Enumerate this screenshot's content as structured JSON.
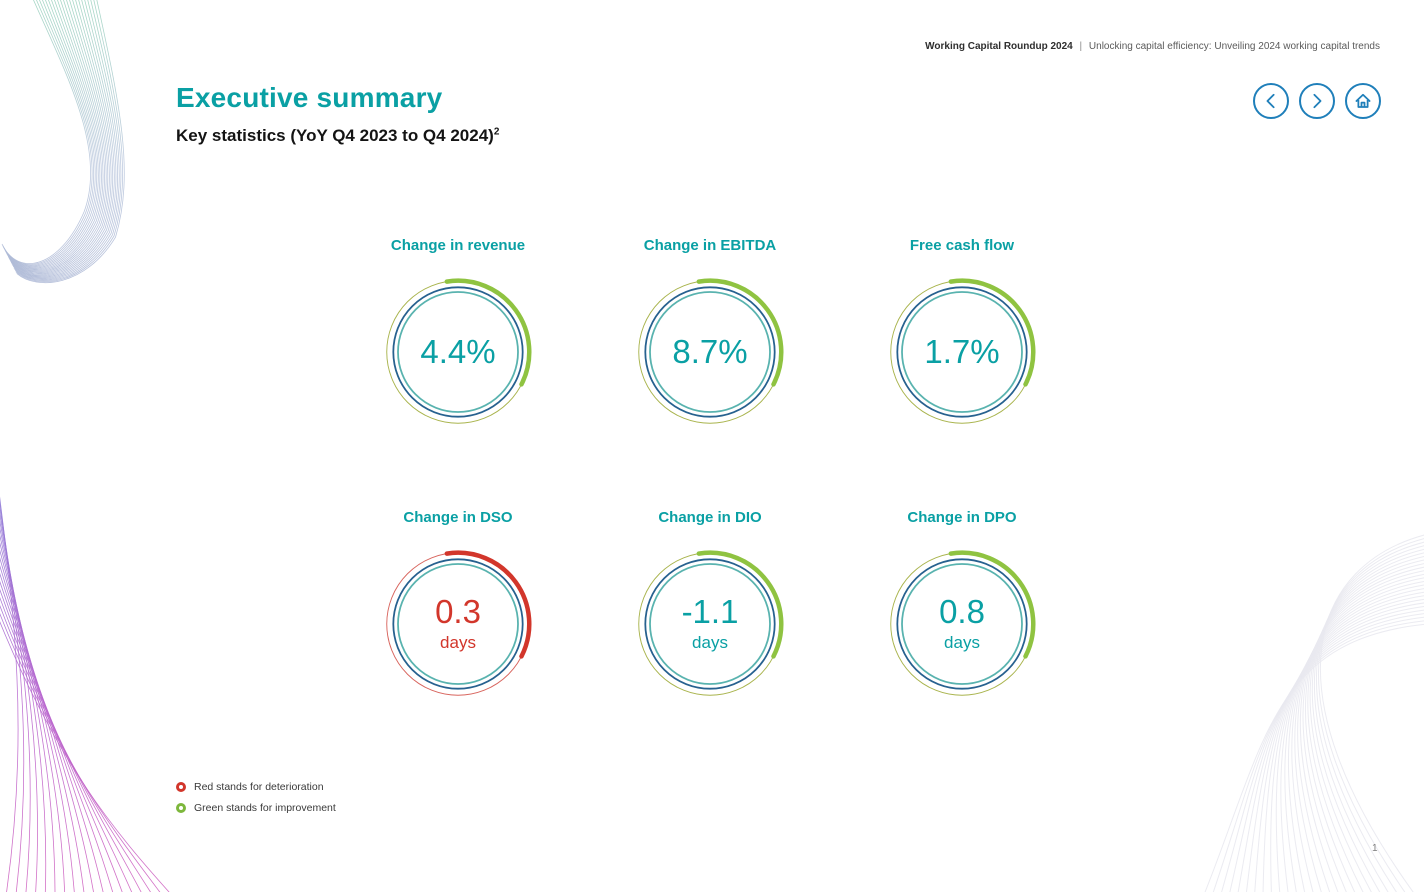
{
  "header": {
    "brand": "Working Capital Roundup 2024",
    "separator": "|",
    "tagline": "Unlocking capital efficiency: Unveiling 2024 working capital trends"
  },
  "page": {
    "title": "Executive summary",
    "subtitle": "Key statistics (YoY Q4 2023 to Q4 2024)",
    "subtitle_sup": "2",
    "page_number": "1"
  },
  "nav": {
    "prev_icon": "chevron-left",
    "next_icon": "chevron-right",
    "home_icon": "home"
  },
  "stats": [
    {
      "label": "Change in revenue",
      "value": "4.4%",
      "unit": "",
      "status": "improvement"
    },
    {
      "label": "Change in EBITDA",
      "value": "8.7%",
      "unit": "",
      "status": "improvement"
    },
    {
      "label": "Free cash flow",
      "value": "1.7%",
      "unit": "",
      "status": "improvement"
    },
    {
      "label": "Change in DSO",
      "value": "0.3",
      "unit": "days",
      "status": "deterioration"
    },
    {
      "label": "Change in DIO",
      "value": "-1.1",
      "unit": "days",
      "status": "improvement"
    },
    {
      "label": "Change in DPO",
      "value": "0.8",
      "unit": "days",
      "status": "improvement"
    }
  ],
  "legend": {
    "items": [
      {
        "label": "Red stands for deterioration",
        "color": "#d2362b",
        "meaning": "deterioration"
      },
      {
        "label": "Green stands for improvement",
        "color": "#7db73c",
        "meaning": "improvement"
      }
    ]
  },
  "colors": {
    "teal_text": "#0aa0a4",
    "green_arc": "#8fc341",
    "red_arc": "#d2362b",
    "olive_ring": "#a9b44d",
    "light_red_ring": "#d8655e",
    "navy_ring": "#27618f",
    "teal_ring": "#59b3af",
    "nav_blue": "#1f7fba"
  }
}
